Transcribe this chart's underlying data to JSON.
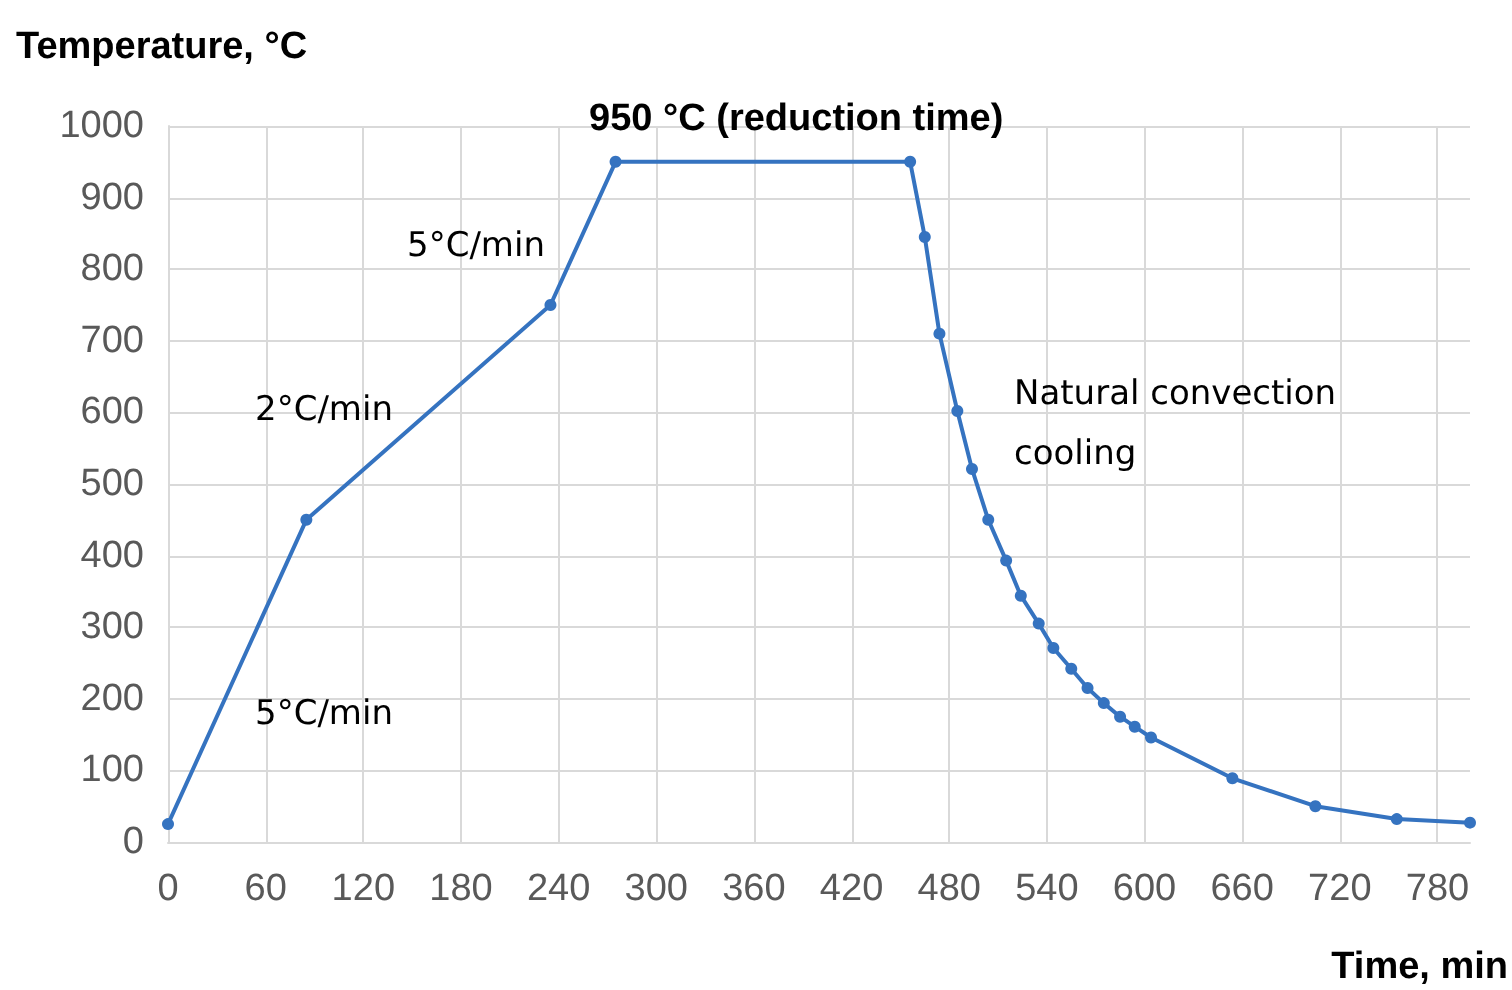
{
  "chart_data": {
    "type": "line",
    "xlabel": "Time, min",
    "ylabel": "Temperature, °C",
    "x": [
      0,
      85,
      235,
      275,
      456,
      465,
      474,
      485,
      494,
      504,
      515,
      524,
      535,
      544,
      555,
      565,
      575,
      585,
      594,
      604,
      654,
      705,
      755,
      800
    ],
    "series": [
      {
        "color": "#3573c0",
        "values": [
          25,
          450,
          750,
          950,
          950,
          845,
          710,
          602,
          521,
          450,
          393,
          344,
          305,
          271,
          242,
          215,
          194,
          175,
          161,
          146,
          89,
          50,
          32,
          27
        ]
      }
    ],
    "xlim": [
      0,
      800
    ],
    "xticks": [
      0,
      60,
      120,
      180,
      240,
      300,
      360,
      420,
      480,
      540,
      600,
      660,
      720,
      780
    ],
    "ylim": [
      0,
      1000
    ],
    "yticks": [
      0,
      100,
      200,
      300,
      400,
      500,
      600,
      700,
      800,
      900,
      1000
    ],
    "grid": true,
    "marker": "circle",
    "line_style": "solid",
    "annotations": [
      {
        "text": "950 °C (reduction time)",
        "x": 386,
        "y": 950
      },
      "5°C/min",
      "2°C/min",
      "5°C/min",
      "Natural convection cooling"
    ]
  }
}
